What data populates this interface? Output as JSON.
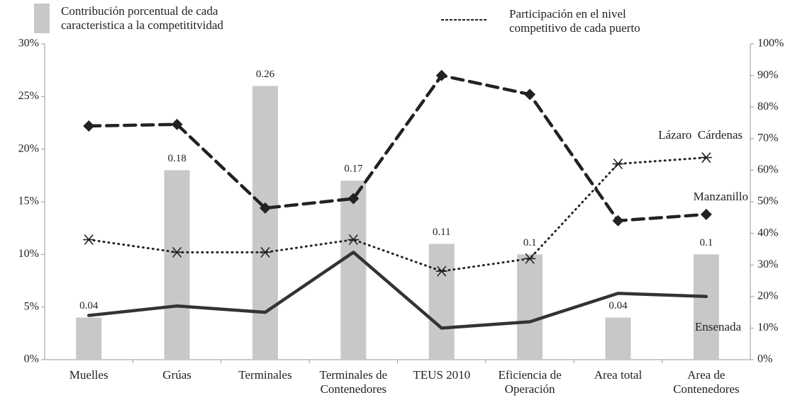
{
  "chart_data": {
    "type": "bar-line",
    "categories": [
      "Muelles",
      "Grúas",
      "Terminales",
      "Terminales de Contenedores",
      "TEUS 2010",
      "Eficiencia de Operación",
      "Area total",
      "Area de Contenedores"
    ],
    "bar_series": {
      "name": "Contribución porcentual de cada caracteristica  a la competititvidad",
      "color": "#c8c8c8",
      "values": [
        4,
        18,
        26,
        17,
        11,
        10,
        4,
        10
      ],
      "value_labels": [
        "0.04",
        "0.18",
        "0.26",
        "0.17",
        "0.11",
        "0.1",
        "0.04",
        "0.1"
      ]
    },
    "line_legend": "Participación en el nivel competitivo de cada puerto",
    "series": [
      {
        "name": "Manzanillo",
        "color": "#222222",
        "style": "dashed",
        "marker": "diamond",
        "axis": "y2",
        "values": [
          74,
          74.5,
          48,
          51,
          90,
          84,
          44,
          46
        ]
      },
      {
        "name": "Lázaro  Cárdenas",
        "color": "#222222",
        "style": "dotted",
        "marker": "asterisk",
        "axis": "y2",
        "values": [
          38,
          34,
          34,
          38,
          28,
          32,
          62,
          64
        ]
      },
      {
        "name": "Ensenada",
        "color": "#333333",
        "style": "solid",
        "marker": "none",
        "axis": "y2",
        "values": [
          14,
          17,
          15,
          34,
          10,
          12,
          21,
          20
        ]
      }
    ],
    "ylim": [
      0,
      30
    ],
    "yticks": [
      {
        "value": 0,
        "label": "0%"
      },
      {
        "value": 5,
        "label": "5%"
      },
      {
        "value": 10,
        "label": "10%"
      },
      {
        "value": 15,
        "label": "15%"
      },
      {
        "value": 20,
        "label": "20%"
      },
      {
        "value": 25,
        "label": "25%"
      },
      {
        "value": 30,
        "label": "30%"
      }
    ],
    "y2lim": [
      0,
      100
    ],
    "y2ticks": [
      {
        "value": 0,
        "label": "0%"
      },
      {
        "value": 10,
        "label": "10%"
      },
      {
        "value": 20,
        "label": "20%"
      },
      {
        "value": 30,
        "label": "30%"
      },
      {
        "value": 40,
        "label": "40%"
      },
      {
        "value": 50,
        "label": "50%"
      },
      {
        "value": 60,
        "label": "60%"
      },
      {
        "value": 70,
        "label": "70%"
      },
      {
        "value": 80,
        "label": "80%"
      },
      {
        "value": 90,
        "label": "90%"
      },
      {
        "value": 100,
        "label": "100%"
      }
    ]
  }
}
